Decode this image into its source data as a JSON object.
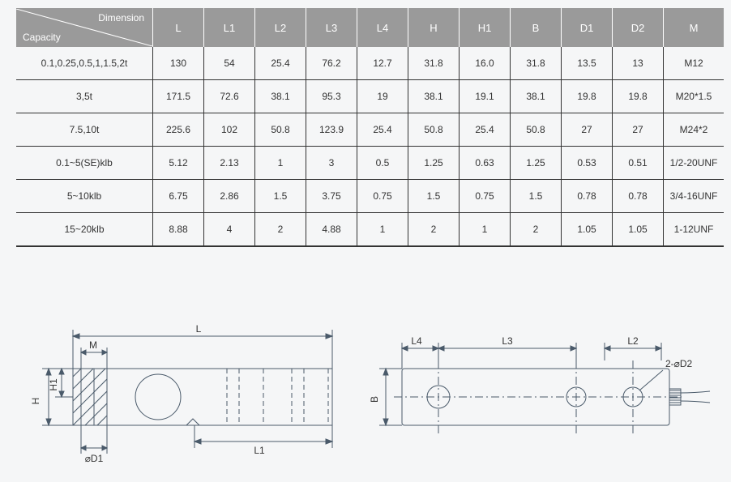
{
  "header": {
    "diag_top": "Dimension",
    "diag_bot": "Capacity",
    "cols": [
      "L",
      "L1",
      "L2",
      "L3",
      "L4",
      "H",
      "H1",
      "B",
      "D1",
      "D2",
      "M"
    ]
  },
  "rows": [
    {
      "cap": "0.1,0.25,0.5,1,1.5,2t",
      "v": [
        "130",
        "54",
        "25.4",
        "76.2",
        "12.7",
        "31.8",
        "16.0",
        "31.8",
        "13.5",
        "13",
        "M12"
      ]
    },
    {
      "cap": "3,5t",
      "v": [
        "171.5",
        "72.6",
        "38.1",
        "95.3",
        "19",
        "38.1",
        "19.1",
        "38.1",
        "19.8",
        "19.8",
        "M20*1.5"
      ]
    },
    {
      "cap": "7.5,10t",
      "v": [
        "225.6",
        "102",
        "50.8",
        "123.9",
        "25.4",
        "50.8",
        "25.4",
        "50.8",
        "27",
        "27",
        "M24*2"
      ]
    },
    {
      "cap": "0.1~5(SE)klb",
      "v": [
        "5.12",
        "2.13",
        "1",
        "3",
        "0.5",
        "1.25",
        "0.63",
        "1.25",
        "0.53",
        "0.51",
        "1/2-20UNF"
      ]
    },
    {
      "cap": "5~10klb",
      "v": [
        "6.75",
        "2.86",
        "1.5",
        "3.75",
        "0.75",
        "1.5",
        "0.75",
        "1.5",
        "0.78",
        "0.78",
        "3/4-16UNF"
      ]
    },
    {
      "cap": "15~20klb",
      "v": [
        "8.88",
        "4",
        "2",
        "4.88",
        "1",
        "2",
        "1",
        "2",
        "1.05",
        "1.05",
        "1-12UNF"
      ]
    }
  ],
  "drawing_labels": {
    "L": "L",
    "L1": "L1",
    "L2": "L2",
    "L3": "L3",
    "L4": "L4",
    "M": "M",
    "H": "H",
    "H1": "H1",
    "B": "B",
    "D1": "⌀D1",
    "D2": "2-⌀D2"
  },
  "style": {
    "header_bg": "#9a9a9a",
    "header_fg": "#ffffff",
    "line": "#4a5a6a",
    "text": "#333333",
    "page_bg": "#f5f6f7"
  }
}
